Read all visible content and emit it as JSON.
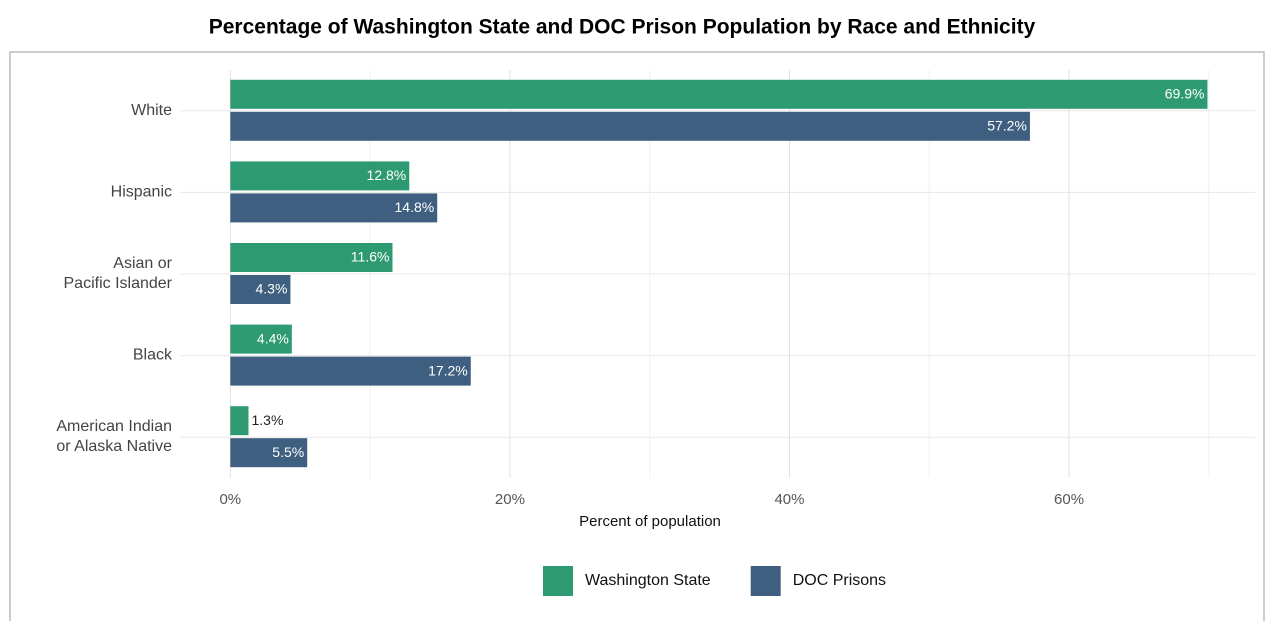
{
  "chart_data": {
    "type": "hbar",
    "title": "Percentage of Washington State and DOC Prison Population by Race and Ethnicity",
    "xlabel": "Percent of population",
    "categories": [
      "White",
      "Hispanic",
      "Asian or\nPacific Islander",
      "Black",
      "American Indian\nor Alaska Native"
    ],
    "series": [
      {
        "name": "Washington State",
        "color": "#2e9a72",
        "values": [
          69.9,
          12.8,
          11.6,
          4.4,
          1.3
        ],
        "value_labels": [
          "69.9%",
          "12.8%",
          "11.6%",
          "4.4%",
          "1.3%"
        ]
      },
      {
        "name": "DOC Prisons",
        "color": "#3e5f80",
        "values": [
          57.2,
          14.8,
          4.3,
          17.2,
          5.5
        ],
        "value_labels": [
          "57.2%",
          "14.8%",
          "4.3%",
          "17.2%",
          "5.5%"
        ]
      }
    ],
    "xlim": [
      -3.6,
      73.3
    ],
    "xticks": [
      {
        "value": 0,
        "label": "0%"
      },
      {
        "value": 20,
        "label": "20%"
      },
      {
        "value": 40,
        "label": "40%"
      },
      {
        "value": 60,
        "label": "60%"
      }
    ],
    "xminor": [
      10,
      30,
      50,
      70
    ],
    "grid": true,
    "legend": "bottom"
  }
}
